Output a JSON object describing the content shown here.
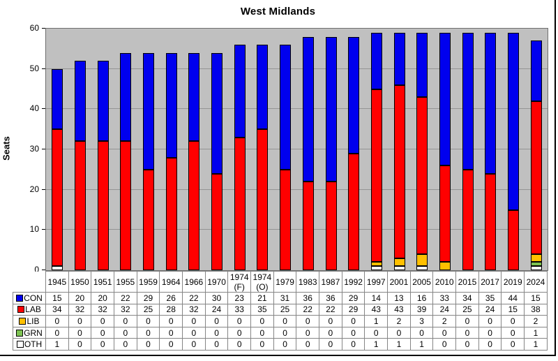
{
  "chart_data": {
    "type": "bar",
    "stacked": true,
    "title": "West Midlands",
    "xlabel": "",
    "ylabel": "Seats",
    "ylim": [
      0,
      60
    ],
    "yticks": [
      0,
      10,
      20,
      30,
      40,
      50,
      60
    ],
    "grid": "horizontal",
    "legend_position": "table-left",
    "plot_bg_color": "#C0C0C0",
    "gridline_color": "#949494",
    "categories": [
      "1945",
      "1950",
      "1951",
      "1955",
      "1959",
      "1964",
      "1966",
      "1970",
      "1974 (F)",
      "1974 (O)",
      "1979",
      "1983",
      "1987",
      "1992",
      "1997",
      "2001",
      "2005",
      "2010",
      "2015",
      "2017",
      "2019",
      "2024"
    ],
    "series": [
      {
        "name": "CON",
        "color": "#0000EE",
        "values": [
          15,
          20,
          20,
          22,
          29,
          26,
          22,
          30,
          23,
          21,
          31,
          36,
          36,
          29,
          14,
          13,
          16,
          33,
          34,
          35,
          44,
          15
        ]
      },
      {
        "name": "LAB",
        "color": "#FF0000",
        "values": [
          34,
          32,
          32,
          32,
          25,
          28,
          32,
          24,
          33,
          35,
          25,
          22,
          22,
          29,
          43,
          43,
          39,
          24,
          25,
          24,
          15,
          38
        ]
      },
      {
        "name": "LIB",
        "color": "#FFC000",
        "values": [
          0,
          0,
          0,
          0,
          0,
          0,
          0,
          0,
          0,
          0,
          0,
          0,
          0,
          0,
          1,
          2,
          3,
          2,
          0,
          0,
          0,
          2
        ]
      },
      {
        "name": "GRN",
        "color": "#7DC352",
        "values": [
          0,
          0,
          0,
          0,
          0,
          0,
          0,
          0,
          0,
          0,
          0,
          0,
          0,
          0,
          0,
          0,
          0,
          0,
          0,
          0,
          0,
          1
        ]
      },
      {
        "name": "OTH",
        "color": "#FFFFFF",
        "values": [
          1,
          0,
          0,
          0,
          0,
          0,
          0,
          0,
          0,
          0,
          0,
          0,
          0,
          0,
          1,
          1,
          1,
          0,
          0,
          0,
          0,
          1
        ]
      }
    ],
    "stack_order_bottom_to_top": [
      "OTH",
      "GRN",
      "LIB",
      "LAB",
      "CON"
    ]
  }
}
